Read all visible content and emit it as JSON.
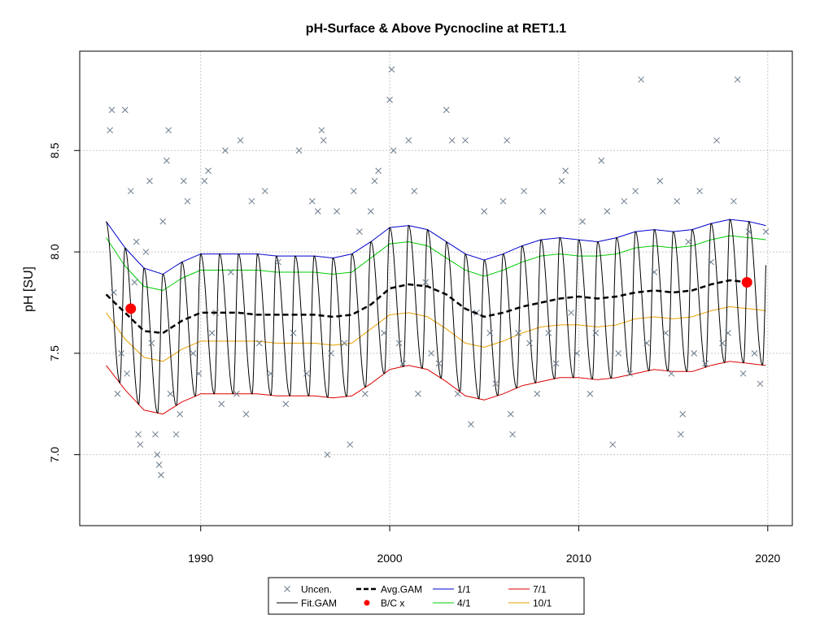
{
  "chart_data": {
    "type": "line",
    "title": "pH-Surface & Above Pycnocline at RET1.1",
    "xlabel": "",
    "ylabel": "pH [SU]",
    "xlim": [
      1983.6,
      2021.3
    ],
    "ylim": [
      6.65,
      8.99
    ],
    "x_ticks": [
      1990,
      2000,
      2010,
      2020
    ],
    "y_ticks": [
      7.0,
      7.5,
      8.0,
      8.5
    ],
    "x_tick_labels": [
      "1990",
      "2000",
      "2010",
      "2020"
    ],
    "y_tick_labels": [
      "7.0",
      "7.5",
      "8.0",
      "8.5"
    ],
    "grid": true,
    "legend_position": "bottom-center",
    "legend": [
      {
        "label": "Uncen.",
        "kind": "cross",
        "color": "#6b7b8c"
      },
      {
        "label": "Fit.GAM",
        "kind": "line",
        "color": "#000000"
      },
      {
        "label": "Avg.GAM",
        "kind": "dashed",
        "color": "#000000"
      },
      {
        "label": "B/C x",
        "kind": "dot",
        "color": "#ff0000"
      },
      {
        "label": "1/1",
        "kind": "line",
        "color": "#0000cc"
      },
      {
        "label": "4/1",
        "kind": "line",
        "color": "#00cc00"
      },
      {
        "label": "7/1",
        "kind": "line",
        "color": "#dd0000"
      },
      {
        "label": "10/1",
        "kind": "line",
        "color": "#e8a000"
      }
    ],
    "avg_gam": [
      [
        1985.0,
        7.79
      ],
      [
        1986.0,
        7.7
      ],
      [
        1987.0,
        7.61
      ],
      [
        1988.0,
        7.6
      ],
      [
        1989.0,
        7.66
      ],
      [
        1990.0,
        7.7
      ],
      [
        1991.0,
        7.7
      ],
      [
        1992.0,
        7.7
      ],
      [
        1993.0,
        7.69
      ],
      [
        1994.0,
        7.69
      ],
      [
        1995.0,
        7.69
      ],
      [
        1996.0,
        7.69
      ],
      [
        1997.0,
        7.68
      ],
      [
        1998.0,
        7.69
      ],
      [
        1999.0,
        7.74
      ],
      [
        2000.0,
        7.82
      ],
      [
        2001.0,
        7.84
      ],
      [
        2002.0,
        7.83
      ],
      [
        2003.0,
        7.79
      ],
      [
        2004.0,
        7.72
      ],
      [
        2005.0,
        7.68
      ],
      [
        2006.0,
        7.7
      ],
      [
        2007.0,
        7.73
      ],
      [
        2008.0,
        7.75
      ],
      [
        2009.0,
        7.77
      ],
      [
        2010.0,
        7.78
      ],
      [
        2011.0,
        7.77
      ],
      [
        2012.0,
        7.78
      ],
      [
        2013.0,
        7.8
      ],
      [
        2014.0,
        7.81
      ],
      [
        2015.0,
        7.8
      ],
      [
        2016.0,
        7.81
      ],
      [
        2017.0,
        7.84
      ],
      [
        2018.0,
        7.86
      ],
      [
        2019.0,
        7.85
      ]
    ],
    "series": [
      {
        "name": "1/1",
        "color": "#0000cc",
        "points": [
          [
            1985.0,
            8.15
          ],
          [
            1986.0,
            8.02
          ],
          [
            1987.0,
            7.92
          ],
          [
            1988.0,
            7.89
          ],
          [
            1989.0,
            7.95
          ],
          [
            1990.0,
            7.99
          ],
          [
            1991.0,
            7.99
          ],
          [
            1992.0,
            7.99
          ],
          [
            1993.0,
            7.99
          ],
          [
            1994.0,
            7.98
          ],
          [
            1995.0,
            7.98
          ],
          [
            1996.0,
            7.98
          ],
          [
            1997.0,
            7.97
          ],
          [
            1998.0,
            7.99
          ],
          [
            1999.0,
            8.05
          ],
          [
            2000.0,
            8.12
          ],
          [
            2001.0,
            8.13
          ],
          [
            2002.0,
            8.11
          ],
          [
            2003.0,
            8.05
          ],
          [
            2004.0,
            7.99
          ],
          [
            2005.0,
            7.96
          ],
          [
            2006.0,
            7.99
          ],
          [
            2007.0,
            8.03
          ],
          [
            2008.0,
            8.06
          ],
          [
            2009.0,
            8.07
          ],
          [
            2010.0,
            8.06
          ],
          [
            2011.0,
            8.05
          ],
          [
            2012.0,
            8.07
          ],
          [
            2013.0,
            8.1
          ],
          [
            2014.0,
            8.11
          ],
          [
            2015.0,
            8.1
          ],
          [
            2016.0,
            8.11
          ],
          [
            2017.0,
            8.14
          ],
          [
            2018.0,
            8.16
          ],
          [
            2019.0,
            8.15
          ],
          [
            2019.9,
            8.13
          ]
        ]
      },
      {
        "name": "4/1",
        "color": "#00cc00",
        "points": [
          [
            1985.0,
            8.07
          ],
          [
            1986.0,
            7.93
          ],
          [
            1987.0,
            7.83
          ],
          [
            1988.0,
            7.81
          ],
          [
            1989.0,
            7.87
          ],
          [
            1990.0,
            7.91
          ],
          [
            1991.0,
            7.91
          ],
          [
            1992.0,
            7.91
          ],
          [
            1993.0,
            7.91
          ],
          [
            1994.0,
            7.9
          ],
          [
            1995.0,
            7.9
          ],
          [
            1996.0,
            7.9
          ],
          [
            1997.0,
            7.89
          ],
          [
            1998.0,
            7.9
          ],
          [
            1999.0,
            7.97
          ],
          [
            2000.0,
            8.04
          ],
          [
            2001.0,
            8.05
          ],
          [
            2002.0,
            8.03
          ],
          [
            2003.0,
            7.97
          ],
          [
            2004.0,
            7.91
          ],
          [
            2005.0,
            7.88
          ],
          [
            2006.0,
            7.91
          ],
          [
            2007.0,
            7.95
          ],
          [
            2008.0,
            7.98
          ],
          [
            2009.0,
            7.99
          ],
          [
            2010.0,
            7.98
          ],
          [
            2011.0,
            7.98
          ],
          [
            2012.0,
            7.99
          ],
          [
            2013.0,
            8.02
          ],
          [
            2014.0,
            8.03
          ],
          [
            2015.0,
            8.02
          ],
          [
            2016.0,
            8.03
          ],
          [
            2017.0,
            8.06
          ],
          [
            2018.0,
            8.08
          ],
          [
            2019.0,
            8.07
          ],
          [
            2019.9,
            8.06
          ]
        ]
      },
      {
        "name": "7/1",
        "color": "#dd0000",
        "points": [
          [
            1985.0,
            7.44
          ],
          [
            1986.0,
            7.32
          ],
          [
            1987.0,
            7.22
          ],
          [
            1988.0,
            7.2
          ],
          [
            1989.0,
            7.26
          ],
          [
            1990.0,
            7.3
          ],
          [
            1991.0,
            7.3
          ],
          [
            1992.0,
            7.3
          ],
          [
            1993.0,
            7.3
          ],
          [
            1994.0,
            7.29
          ],
          [
            1995.0,
            7.29
          ],
          [
            1996.0,
            7.29
          ],
          [
            1997.0,
            7.28
          ],
          [
            1998.0,
            7.29
          ],
          [
            1999.0,
            7.35
          ],
          [
            2000.0,
            7.42
          ],
          [
            2001.0,
            7.44
          ],
          [
            2002.0,
            7.42
          ],
          [
            2003.0,
            7.36
          ],
          [
            2004.0,
            7.29
          ],
          [
            2005.0,
            7.27
          ],
          [
            2006.0,
            7.3
          ],
          [
            2007.0,
            7.34
          ],
          [
            2008.0,
            7.36
          ],
          [
            2009.0,
            7.38
          ],
          [
            2010.0,
            7.38
          ],
          [
            2011.0,
            7.37
          ],
          [
            2012.0,
            7.38
          ],
          [
            2013.0,
            7.4
          ],
          [
            2014.0,
            7.42
          ],
          [
            2015.0,
            7.41
          ],
          [
            2016.0,
            7.41
          ],
          [
            2017.0,
            7.44
          ],
          [
            2018.0,
            7.46
          ],
          [
            2019.0,
            7.45
          ],
          [
            2019.9,
            7.44
          ]
        ]
      },
      {
        "name": "10/1",
        "color": "#e8a000",
        "points": [
          [
            1985.0,
            7.7
          ],
          [
            1986.0,
            7.57
          ],
          [
            1987.0,
            7.48
          ],
          [
            1988.0,
            7.46
          ],
          [
            1989.0,
            7.52
          ],
          [
            1990.0,
            7.56
          ],
          [
            1991.0,
            7.56
          ],
          [
            1992.0,
            7.56
          ],
          [
            1993.0,
            7.56
          ],
          [
            1994.0,
            7.55
          ],
          [
            1995.0,
            7.55
          ],
          [
            1996.0,
            7.55
          ],
          [
            1997.0,
            7.54
          ],
          [
            1998.0,
            7.55
          ],
          [
            1999.0,
            7.62
          ],
          [
            2000.0,
            7.69
          ],
          [
            2001.0,
            7.7
          ],
          [
            2002.0,
            7.68
          ],
          [
            2003.0,
            7.62
          ],
          [
            2004.0,
            7.55
          ],
          [
            2005.0,
            7.53
          ],
          [
            2006.0,
            7.56
          ],
          [
            2007.0,
            7.6
          ],
          [
            2008.0,
            7.63
          ],
          [
            2009.0,
            7.64
          ],
          [
            2010.0,
            7.64
          ],
          [
            2011.0,
            7.63
          ],
          [
            2012.0,
            7.64
          ],
          [
            2013.0,
            7.67
          ],
          [
            2014.0,
            7.68
          ],
          [
            2015.0,
            7.67
          ],
          [
            2016.0,
            7.68
          ],
          [
            2017.0,
            7.71
          ],
          [
            2018.0,
            7.73
          ],
          [
            2019.0,
            7.72
          ],
          [
            2019.9,
            7.71
          ]
        ]
      }
    ],
    "fit_gam_range": [
      1985.0,
      2019.9
    ],
    "bc_points": [
      [
        1986.3,
        7.72
      ],
      [
        2018.9,
        7.85
      ]
    ],
    "uncen_points": [
      [
        1985.2,
        8.6
      ],
      [
        1985.3,
        8.7
      ],
      [
        1985.4,
        7.8
      ],
      [
        1985.6,
        7.3
      ],
      [
        1985.8,
        7.5
      ],
      [
        1986.0,
        8.7
      ],
      [
        1986.1,
        7.4
      ],
      [
        1986.3,
        8.3
      ],
      [
        1986.5,
        7.85
      ],
      [
        1986.6,
        8.05
      ],
      [
        1986.7,
        7.1
      ],
      [
        1986.8,
        7.05
      ],
      [
        1987.1,
        8.0
      ],
      [
        1987.3,
        8.35
      ],
      [
        1987.4,
        7.55
      ],
      [
        1987.6,
        7.1
      ],
      [
        1987.7,
        7.0
      ],
      [
        1987.8,
        6.95
      ],
      [
        1987.9,
        6.9
      ],
      [
        1988.0,
        8.15
      ],
      [
        1988.2,
        8.45
      ],
      [
        1988.3,
        8.6
      ],
      [
        1988.4,
        7.3
      ],
      [
        1988.7,
        7.1
      ],
      [
        1988.9,
        7.2
      ],
      [
        1989.1,
        8.35
      ],
      [
        1989.3,
        8.25
      ],
      [
        1989.6,
        7.5
      ],
      [
        1989.9,
        7.4
      ],
      [
        1990.2,
        8.35
      ],
      [
        1990.4,
        8.4
      ],
      [
        1990.6,
        7.6
      ],
      [
        1990.8,
        7.7
      ],
      [
        1991.1,
        7.25
      ],
      [
        1991.3,
        8.5
      ],
      [
        1991.6,
        7.9
      ],
      [
        1991.9,
        7.3
      ],
      [
        1992.1,
        8.55
      ],
      [
        1992.4,
        7.2
      ],
      [
        1992.7,
        8.25
      ],
      [
        1993.1,
        7.55
      ],
      [
        1993.4,
        8.3
      ],
      [
        1993.7,
        7.4
      ],
      [
        1994.1,
        7.95
      ],
      [
        1994.5,
        7.25
      ],
      [
        1994.9,
        7.6
      ],
      [
        1995.2,
        8.5
      ],
      [
        1995.6,
        7.4
      ],
      [
        1995.9,
        8.25
      ],
      [
        1996.2,
        8.2
      ],
      [
        1996.4,
        8.6
      ],
      [
        1996.5,
        8.55
      ],
      [
        1996.7,
        7.0
      ],
      [
        1996.9,
        7.5
      ],
      [
        1997.2,
        8.2
      ],
      [
        1997.6,
        7.55
      ],
      [
        1997.9,
        7.05
      ],
      [
        1998.1,
        8.3
      ],
      [
        1998.4,
        8.1
      ],
      [
        1998.7,
        7.3
      ],
      [
        1999.0,
        8.2
      ],
      [
        1999.2,
        8.35
      ],
      [
        1999.4,
        8.4
      ],
      [
        1999.7,
        7.6
      ],
      [
        2000.0,
        8.75
      ],
      [
        2000.1,
        8.9
      ],
      [
        2000.2,
        8.5
      ],
      [
        2000.5,
        7.55
      ],
      [
        2000.7,
        7.45
      ],
      [
        2001.0,
        8.55
      ],
      [
        2001.3,
        8.3
      ],
      [
        2001.5,
        7.3
      ],
      [
        2001.9,
        7.85
      ],
      [
        2002.2,
        7.5
      ],
      [
        2002.6,
        7.45
      ],
      [
        2003.0,
        8.7
      ],
      [
        2003.3,
        8.55
      ],
      [
        2003.6,
        7.3
      ],
      [
        2004.0,
        8.55
      ],
      [
        2004.3,
        7.15
      ],
      [
        2004.6,
        7.7
      ],
      [
        2005.0,
        8.2
      ],
      [
        2005.3,
        7.6
      ],
      [
        2005.6,
        7.35
      ],
      [
        2006.0,
        8.25
      ],
      [
        2006.2,
        8.55
      ],
      [
        2006.4,
        7.2
      ],
      [
        2006.5,
        7.1
      ],
      [
        2006.8,
        7.6
      ],
      [
        2007.1,
        8.3
      ],
      [
        2007.4,
        7.55
      ],
      [
        2007.8,
        7.3
      ],
      [
        2008.1,
        8.2
      ],
      [
        2008.4,
        7.6
      ],
      [
        2008.8,
        7.45
      ],
      [
        2009.1,
        8.35
      ],
      [
        2009.3,
        8.4
      ],
      [
        2009.6,
        7.7
      ],
      [
        2009.9,
        7.5
      ],
      [
        2010.2,
        8.15
      ],
      [
        2010.6,
        7.3
      ],
      [
        2010.9,
        7.6
      ],
      [
        2011.2,
        8.45
      ],
      [
        2011.5,
        8.2
      ],
      [
        2011.8,
        7.05
      ],
      [
        2012.1,
        7.5
      ],
      [
        2012.4,
        8.25
      ],
      [
        2012.7,
        7.4
      ],
      [
        2013.0,
        8.3
      ],
      [
        2013.3,
        8.85
      ],
      [
        2013.6,
        7.55
      ],
      [
        2014.0,
        7.9
      ],
      [
        2014.3,
        8.35
      ],
      [
        2014.6,
        7.6
      ],
      [
        2014.9,
        7.4
      ],
      [
        2015.2,
        8.25
      ],
      [
        2015.4,
        7.1
      ],
      [
        2015.5,
        7.2
      ],
      [
        2015.8,
        8.05
      ],
      [
        2016.1,
        7.5
      ],
      [
        2016.4,
        8.3
      ],
      [
        2016.7,
        7.45
      ],
      [
        2017.0,
        7.95
      ],
      [
        2017.3,
        8.55
      ],
      [
        2017.6,
        7.55
      ],
      [
        2017.9,
        7.6
      ],
      [
        2018.2,
        8.25
      ],
      [
        2018.4,
        8.85
      ],
      [
        2018.7,
        7.4
      ],
      [
        2019.0,
        8.1
      ],
      [
        2019.3,
        7.5
      ],
      [
        2019.6,
        7.35
      ],
      [
        2019.9,
        8.1
      ]
    ]
  }
}
